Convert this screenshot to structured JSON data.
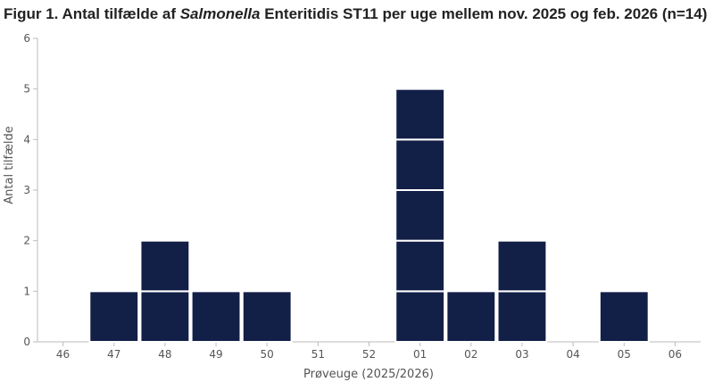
{
  "chart_data": {
    "type": "bar",
    "style": "stacked-unit-cases",
    "title": {
      "prefix": "Figur 1. Antal tilfælde af ",
      "italic": "Salmonella",
      "suffix": " Enteritidis ST11 per uge mellem nov. 2025 og feb. 2026 (n=14)"
    },
    "xlabel": "Prøveuge (2025/2026)",
    "ylabel": "Antal tilfælde",
    "categories": [
      "46",
      "47",
      "48",
      "49",
      "50",
      "51",
      "52",
      "01",
      "02",
      "03",
      "04",
      "05",
      "06"
    ],
    "values": [
      0,
      1,
      2,
      1,
      1,
      0,
      0,
      5,
      1,
      2,
      0,
      1,
      0
    ],
    "ylim": [
      0,
      6
    ],
    "yticks": [
      0,
      1,
      2,
      3,
      4,
      5,
      6
    ],
    "grid": false,
    "legend": "none",
    "bar_color": "#121f47",
    "separator_color": "#ffffff"
  }
}
